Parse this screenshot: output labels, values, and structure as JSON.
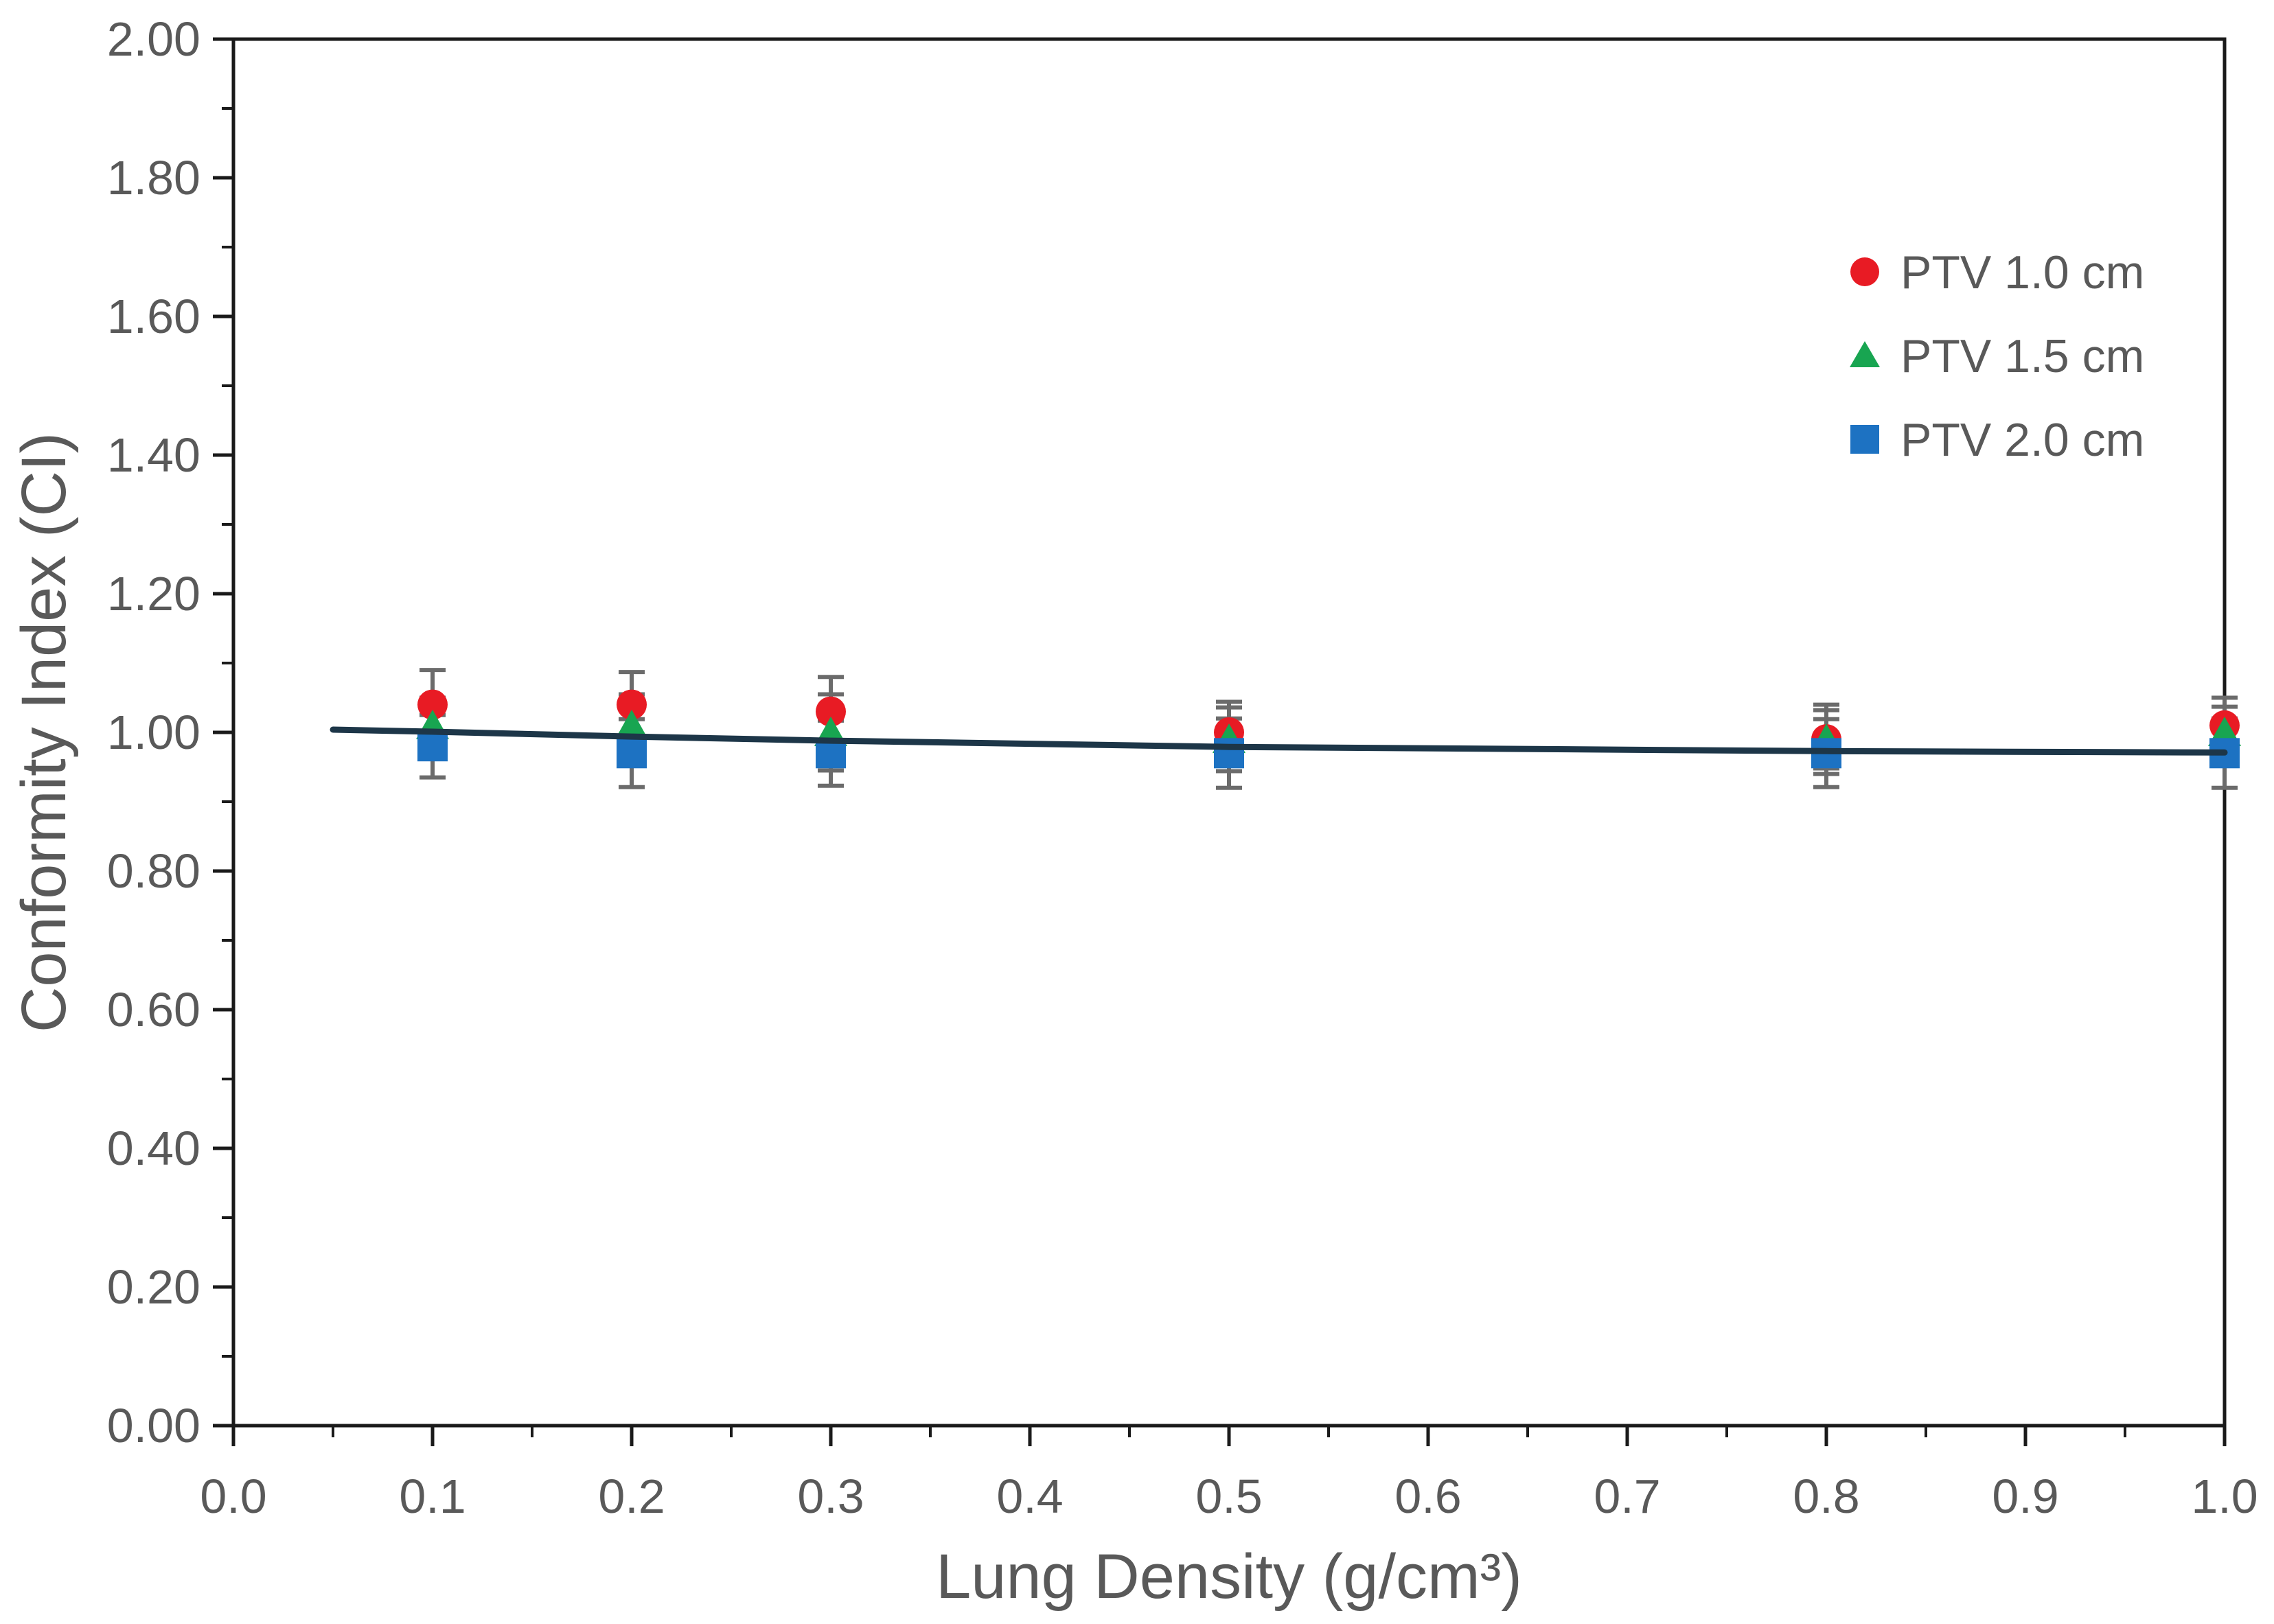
{
  "chart_data": {
    "type": "scatter",
    "title": "",
    "xlabel": "Lung Density (g/cm³)",
    "ylabel": "Conformity Index (CI)",
    "xlim": [
      0.0,
      1.0
    ],
    "ylim": [
      0.0,
      2.0
    ],
    "x_major_step": 0.1,
    "x_minor_step": 0.05,
    "y_major_step": 0.2,
    "y_minor_step": 0.1,
    "x_tick_labels": [
      "0.0",
      "0.1",
      "0.2",
      "0.3",
      "0.4",
      "0.5",
      "0.6",
      "0.7",
      "0.8",
      "0.9",
      "1.0"
    ],
    "y_tick_labels": [
      "0.00",
      "0.20",
      "0.40",
      "0.60",
      "0.80",
      "1.00",
      "1.20",
      "1.40",
      "1.60",
      "1.80",
      "2.00"
    ],
    "grid": "off",
    "legend_position": "inside-top-right",
    "x": [
      0.1,
      0.2,
      0.3,
      0.5,
      0.8,
      1.0
    ],
    "series": [
      {
        "name": "PTV 1.0 cm",
        "marker": "circle",
        "color": "#e81b24",
        "values": [
          1.04,
          1.04,
          1.03,
          1.0,
          0.99,
          1.01
        ],
        "yerr": [
          0.05,
          0.047,
          0.05,
          0.044,
          0.05,
          0.04
        ]
      },
      {
        "name": "PTV 1.5 cm",
        "marker": "triangle",
        "color": "#18a551",
        "values": [
          1.01,
          1.01,
          1.0,
          0.99,
          0.99,
          1.0
        ],
        "yerr": [
          0.04,
          0.045,
          0.055,
          0.046,
          0.042,
          0.037
        ]
      },
      {
        "name": "PTV 2.0 cm",
        "marker": "square",
        "color": "#1d72c2",
        "values": [
          0.98,
          0.97,
          0.97,
          0.97,
          0.97,
          0.97
        ],
        "yerr": [
          0.045,
          0.049,
          0.047,
          0.05,
          0.049,
          0.05
        ]
      }
    ],
    "trendline": {
      "color": "#1d3648",
      "points": [
        [
          0.05,
          1.004
        ],
        [
          0.1,
          1.001
        ],
        [
          0.2,
          0.994
        ],
        [
          0.3,
          0.988
        ],
        [
          0.5,
          0.979
        ],
        [
          0.8,
          0.973
        ],
        [
          1.0,
          0.971
        ]
      ]
    },
    "colors": {
      "axis_text": "#595959",
      "axis_line": "#1a1a1a",
      "error_bar": "#6b6b6b",
      "background": "#ffffff"
    }
  }
}
